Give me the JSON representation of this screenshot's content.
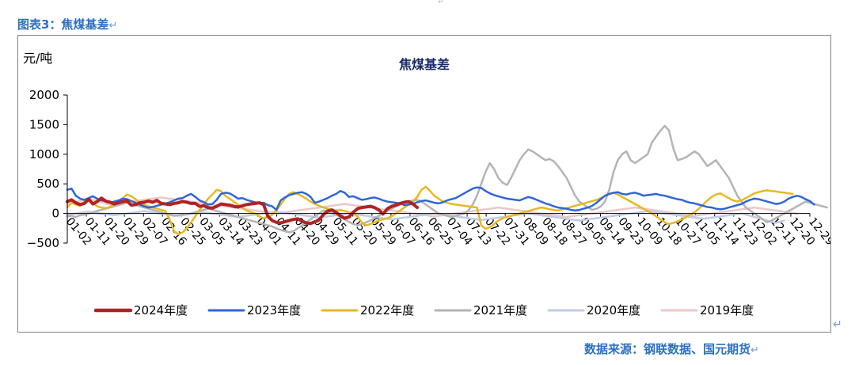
{
  "caption": {
    "label": "图表3：焦煤基差",
    "return_mark": "↵"
  },
  "source": {
    "text": "数据来源：钢联数据、国元期货",
    "return_mark": "↵"
  },
  "chart_data": {
    "type": "line",
    "title": "焦煤基差",
    "ylabel": "元/吨",
    "xlabel": "",
    "ylim": [
      -500,
      2000
    ],
    "yticks": [
      -500,
      0,
      500,
      1000,
      1500,
      2000
    ],
    "x_ticks": [
      "01-02",
      "01-11",
      "01-20",
      "01-29",
      "02-07",
      "02-16",
      "02-25",
      "03-05",
      "03-14",
      "03-23",
      "04-01",
      "04-11",
      "04-20",
      "04-29",
      "05-11",
      "05-20",
      "05-29",
      "06-07",
      "06-16",
      "06-25",
      "07-04",
      "07-13",
      "07-22",
      "07-31",
      "08-09",
      "08-18",
      "08-27",
      "09-05",
      "09-14",
      "09-23",
      "10-09",
      "10-18",
      "10-27",
      "11-05",
      "11-14",
      "11-23",
      "12-02",
      "12-11",
      "12-20",
      "12-29"
    ],
    "grid": false,
    "legend_position": "bottom",
    "series": [
      {
        "name": "2024年度",
        "color": "#b22222",
        "width": 4,
        "values": [
          200,
          230,
          180,
          150,
          170,
          240,
          160,
          200,
          260,
          210,
          190,
          160,
          180,
          200,
          210,
          140,
          150,
          180,
          190,
          210,
          190,
          220,
          170,
          160,
          150,
          170,
          180,
          200,
          190,
          170,
          170,
          120,
          130,
          100,
          90,
          120,
          160,
          150,
          140,
          120,
          110,
          130,
          150,
          160,
          170,
          180,
          150,
          -50,
          -120,
          -150,
          -160,
          -140,
          -120,
          -100,
          -90,
          -130,
          -160,
          -170,
          -140,
          -110,
          -20,
          40,
          60,
          20,
          -40,
          -80,
          -60,
          20,
          80,
          100,
          110,
          120,
          100,
          60,
          -10,
          80,
          120,
          140,
          170,
          190,
          200,
          160,
          100
        ]
      },
      {
        "name": "2023年度",
        "color": "#2e66d8",
        "width": 2.5,
        "values": [
          400,
          420,
          300,
          250,
          230,
          260,
          290,
          250,
          220,
          210,
          180,
          200,
          220,
          250,
          240,
          210,
          180,
          150,
          120,
          100,
          110,
          130,
          150,
          170,
          190,
          220,
          250,
          260,
          300,
          330,
          280,
          220,
          190,
          150,
          160,
          230,
          330,
          350,
          340,
          300,
          250,
          260,
          230,
          210,
          190,
          170,
          180,
          140,
          120,
          60,
          220,
          270,
          310,
          330,
          350,
          360,
          330,
          280,
          180,
          200,
          230,
          260,
          300,
          330,
          380,
          350,
          280,
          290,
          260,
          230,
          240,
          260,
          270,
          250,
          220,
          200,
          190,
          180,
          170,
          140,
          150,
          160,
          190,
          210,
          220,
          200,
          180,
          170,
          190,
          220,
          240,
          260,
          300,
          340,
          380,
          420,
          440,
          430,
          380,
          340,
          310,
          290,
          270,
          250,
          240,
          230,
          220,
          250,
          280,
          260,
          230,
          200,
          170,
          150,
          120,
          100,
          90,
          80,
          60,
          50,
          60,
          80,
          100,
          130,
          180,
          240,
          300,
          330,
          350,
          360,
          330,
          320,
          340,
          350,
          330,
          300,
          310,
          320,
          330,
          310,
          300,
          280,
          260,
          240,
          230,
          200,
          180,
          170,
          150,
          130,
          110,
          100,
          80,
          70,
          80,
          100,
          120,
          140,
          160,
          200,
          230,
          250,
          240,
          220,
          200,
          180,
          160,
          170,
          200,
          250,
          280,
          300,
          280,
          240,
          210,
          150
        ]
      },
      {
        "name": "2022年度",
        "color": "#e8b820",
        "width": 2.5,
        "values": [
          100,
          180,
          150,
          130,
          200,
          220,
          180,
          120,
          100,
          90,
          110,
          150,
          200,
          260,
          320,
          290,
          240,
          180,
          150,
          120,
          100,
          80,
          60,
          40,
          -100,
          -300,
          -350,
          -320,
          -250,
          -150,
          -50,
          60,
          150,
          250,
          320,
          400,
          380,
          300,
          250,
          200,
          150,
          100,
          50,
          20,
          0,
          -50,
          -80,
          -60,
          -20,
          50,
          150,
          250,
          330,
          360,
          330,
          290,
          250,
          200,
          160,
          130,
          100,
          80,
          60,
          50,
          60,
          40,
          20,
          0,
          -50,
          -150,
          -200,
          -180,
          -150,
          -120,
          -100,
          -80,
          -50,
          0,
          50,
          100,
          150,
          200,
          280,
          400,
          450,
          380,
          300,
          250,
          200,
          180,
          160,
          150,
          140,
          130,
          120,
          110,
          100,
          -200,
          -260,
          -230,
          -180,
          -120,
          -80,
          -60,
          -40,
          -20,
          0,
          20,
          40,
          60,
          80,
          100,
          90,
          70,
          60,
          50,
          70,
          90,
          110,
          130,
          150,
          170,
          190,
          210,
          230,
          260,
          300,
          330,
          350,
          320,
          280,
          240,
          200,
          160,
          120,
          80,
          40,
          0,
          -50,
          -100,
          -150,
          -180,
          -160,
          -130,
          -100,
          -60,
          -20,
          20,
          80,
          150,
          220,
          280,
          320,
          340,
          300,
          260,
          220,
          200,
          220,
          260,
          300,
          340,
          360,
          380,
          390,
          380,
          370,
          360,
          350,
          340,
          330
        ]
      },
      {
        "name": "2021年度",
        "color": "#b4b4b4",
        "width": 2.5,
        "values": [
          -50,
          -40,
          -60,
          -30,
          -20,
          0,
          20,
          40,
          60,
          80,
          100,
          120,
          140,
          160,
          180,
          160,
          140,
          120,
          100,
          80,
          60,
          40,
          20,
          0,
          -20,
          -40,
          -30,
          -20,
          -10,
          0,
          20,
          40,
          60,
          80,
          60,
          40,
          20,
          0,
          -20,
          -40,
          -60,
          -80,
          -100,
          -120,
          -140,
          -160,
          -180,
          -200,
          -220,
          -250,
          -280,
          -300,
          -320,
          -300,
          -250,
          -200,
          -150,
          -100,
          -50,
          0,
          50,
          30,
          10,
          -20,
          -60,
          -100,
          -140,
          -180,
          -200,
          -180,
          -150,
          -120,
          -80,
          -40,
          0,
          40,
          80,
          120,
          150,
          180,
          200,
          220,
          230,
          200,
          150,
          100,
          50,
          0,
          -20,
          -40,
          -60,
          -40,
          -20,
          0,
          50,
          150,
          300,
          500,
          700,
          850,
          750,
          600,
          520,
          480,
          600,
          750,
          900,
          1000,
          1080,
          1050,
          1000,
          950,
          900,
          920,
          880,
          800,
          700,
          600,
          450,
          300,
          200,
          150,
          100,
          60,
          80,
          120,
          200,
          400,
          700,
          900,
          1000,
          1050,
          900,
          850,
          900,
          950,
          1000,
          1200,
          1300,
          1400,
          1480,
          1400,
          1100,
          900,
          920,
          950,
          1000,
          1050,
          1000,
          900,
          800,
          850,
          900,
          800,
          700,
          600,
          450,
          300,
          200,
          100,
          50,
          0,
          -50,
          -100,
          -150,
          -120,
          -80,
          -40,
          0,
          40,
          80,
          120,
          160,
          200,
          180,
          160,
          140,
          120,
          100
        ]
      },
      {
        "name": "2020年度",
        "color": "#c0cbe8",
        "width": 2.5,
        "values": [
          -20,
          -10,
          0,
          10,
          20,
          30,
          20,
          10,
          0,
          -10,
          -20,
          -30,
          -20,
          -10,
          0,
          10,
          20,
          30,
          40,
          30,
          20,
          10,
          0,
          -10,
          -20,
          -30,
          -40,
          -30,
          -20,
          -10,
          0,
          10,
          20,
          10,
          0,
          -10,
          -20,
          -30,
          -40,
          -50,
          -60,
          -50,
          -40,
          -30,
          -20,
          -10,
          0,
          10,
          20,
          30,
          20,
          10,
          0,
          -10,
          -20,
          -30,
          -40,
          -50,
          -60,
          -70,
          -60,
          -50,
          -40,
          -30,
          -20,
          -10,
          0,
          -10,
          -20,
          -30,
          -40,
          -50,
          -60,
          -70,
          -80,
          -90,
          -100,
          -90,
          -80,
          -70,
          -60,
          -50,
          -40,
          -30,
          -20,
          -10,
          0,
          -10,
          -20,
          -30,
          -40,
          -50,
          -60,
          -70,
          -80,
          -90,
          -100,
          -110,
          -100,
          -90,
          -80,
          -70,
          -60,
          -50,
          -40,
          -30,
          -20,
          -10,
          0,
          -10,
          -20,
          -30,
          -40,
          -50,
          -60,
          -70,
          -80,
          -90,
          -100,
          -110,
          -120,
          -110,
          -100,
          -90,
          -80,
          -70,
          -60,
          -50,
          -40,
          -30,
          -20,
          -10,
          0,
          10,
          20,
          30,
          40,
          30,
          20,
          10,
          0,
          -10,
          -20,
          -30,
          -40,
          -50,
          -60,
          -70,
          -80,
          -90,
          -80,
          -70,
          -60,
          -50,
          -40,
          -30,
          -20,
          -10,
          0,
          -20,
          -40,
          -60,
          -80,
          -100,
          -120,
          -140,
          -160,
          -140,
          -120
        ]
      },
      {
        "name": "2019年度",
        "color": "#ecc8c8",
        "width": 2.5,
        "values": [
          150,
          170,
          190,
          210,
          230,
          250,
          230,
          210,
          190,
          170,
          150,
          160,
          170,
          180,
          190,
          200,
          210,
          220,
          230,
          240,
          250,
          260,
          270,
          260,
          250,
          240,
          230,
          220,
          210,
          200,
          190,
          180,
          170,
          160,
          150,
          140,
          130,
          120,
          110,
          100,
          90,
          80,
          70,
          60,
          50,
          40,
          30,
          20,
          10,
          0,
          10,
          20,
          30,
          40,
          50,
          60,
          70,
          80,
          90,
          100,
          110,
          120,
          130,
          140,
          150,
          160,
          150,
          140,
          130,
          120,
          110,
          100,
          90,
          80,
          70,
          60,
          50,
          40,
          30,
          20,
          10,
          0,
          -10,
          -20,
          -30,
          -40,
          -50,
          -40,
          -30,
          -20,
          -10,
          0,
          10,
          20,
          30,
          40,
          50,
          60,
          70,
          80,
          90,
          100,
          90,
          80,
          70,
          60,
          50,
          40,
          30,
          20,
          10,
          0,
          -10,
          -20,
          -30,
          -40,
          -50,
          -60,
          -50,
          -40,
          -30,
          -20,
          -10,
          0,
          10,
          20,
          30,
          40,
          50,
          60,
          70,
          80,
          90,
          100,
          90,
          80,
          70,
          60,
          50,
          40,
          30,
          20,
          10,
          0,
          -10,
          -20,
          -30,
          -40,
          -30,
          -20,
          -10,
          0,
          10,
          20,
          30,
          40,
          50,
          60,
          70,
          80,
          90,
          100,
          90,
          80,
          70,
          60,
          50,
          40,
          30,
          20,
          10,
          0
        ]
      }
    ]
  }
}
